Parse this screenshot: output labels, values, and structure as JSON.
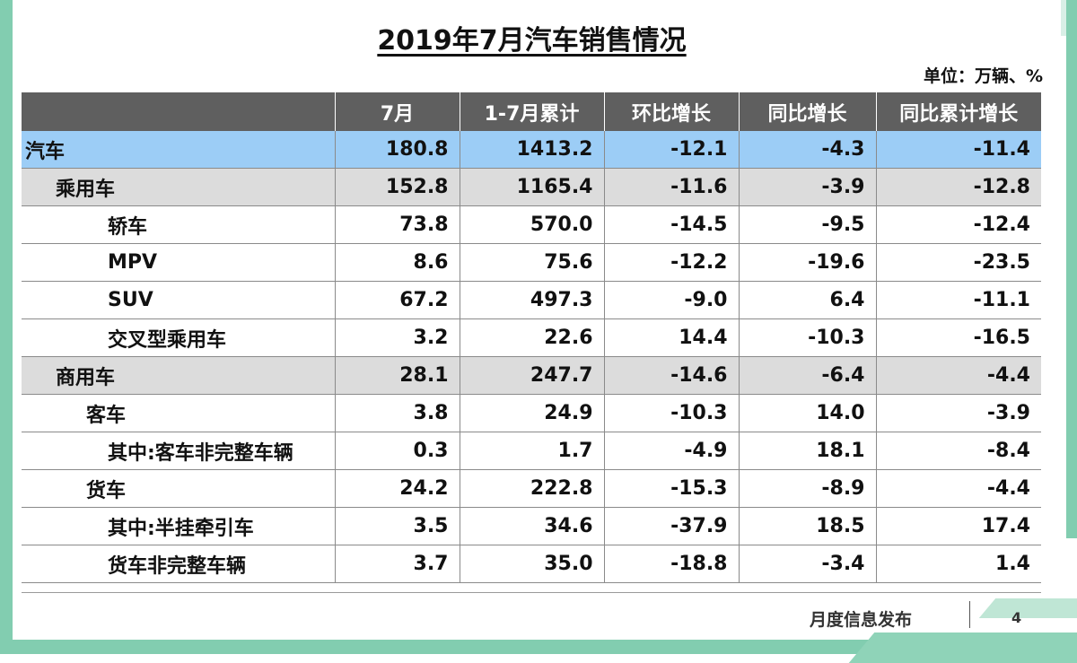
{
  "title": "2019年7月汽车销售情况",
  "unit": "单位：万辆、%",
  "columns": [
    "",
    "7月",
    "1-7月累计",
    "环比增长",
    "同比增长",
    "同比累计增长"
  ],
  "rows": [
    {
      "name": "汽车",
      "level": 0,
      "july": "180.8",
      "ytd": "1413.2",
      "mom": "-12.1",
      "yoy": "-4.3",
      "ytd_yoy": "-11.4"
    },
    {
      "name": "乘用车",
      "level": 1,
      "july": "152.8",
      "ytd": "1165.4",
      "mom": "-11.6",
      "yoy": "-3.9",
      "ytd_yoy": "-12.8"
    },
    {
      "name": "轿车",
      "level": 3,
      "july": "73.8",
      "ytd": "570.0",
      "mom": "-14.5",
      "yoy": "-9.5",
      "ytd_yoy": "-12.4"
    },
    {
      "name": "MPV",
      "level": 3,
      "july": "8.6",
      "ytd": "75.6",
      "mom": "-12.2",
      "yoy": "-19.6",
      "ytd_yoy": "-23.5"
    },
    {
      "name": "SUV",
      "level": 3,
      "july": "67.2",
      "ytd": "497.3",
      "mom": "-9.0",
      "yoy": "6.4",
      "ytd_yoy": "-11.1"
    },
    {
      "name": "交叉型乘用车",
      "level": 3,
      "july": "3.2",
      "ytd": "22.6",
      "mom": "14.4",
      "yoy": "-10.3",
      "ytd_yoy": "-16.5"
    },
    {
      "name": "商用车",
      "level": 1,
      "july": "28.1",
      "ytd": "247.7",
      "mom": "-14.6",
      "yoy": "-6.4",
      "ytd_yoy": "-4.4"
    },
    {
      "name": "客车",
      "level": 2,
      "july": "3.8",
      "ytd": "24.9",
      "mom": "-10.3",
      "yoy": "14.0",
      "ytd_yoy": "-3.9"
    },
    {
      "name": "其中:客车非完整车辆",
      "level": 3,
      "july": "0.3",
      "ytd": "1.7",
      "mom": "-4.9",
      "yoy": "18.1",
      "ytd_yoy": "-8.4"
    },
    {
      "name": "货车",
      "level": 2,
      "july": "24.2",
      "ytd": "222.8",
      "mom": "-15.3",
      "yoy": "-8.9",
      "ytd_yoy": "-4.4"
    },
    {
      "name": "其中:半挂牵引车",
      "level": 3,
      "july": "3.5",
      "ytd": "34.6",
      "mom": "-37.9",
      "yoy": "18.5",
      "ytd_yoy": "17.4"
    },
    {
      "name": "货车非完整车辆",
      "level": 3,
      "july": "3.7",
      "ytd": "35.0",
      "mom": "-18.8",
      "yoy": "-3.4",
      "ytd_yoy": "1.4"
    }
  ],
  "footer": {
    "label": "月度信息发布",
    "page": "4"
  },
  "colors": {
    "header_bg": "#5f5f5f",
    "total_row_bg": "#9ccdf6",
    "category_row_bg": "#dcdcdc",
    "accent_green": "#82cdb0"
  }
}
